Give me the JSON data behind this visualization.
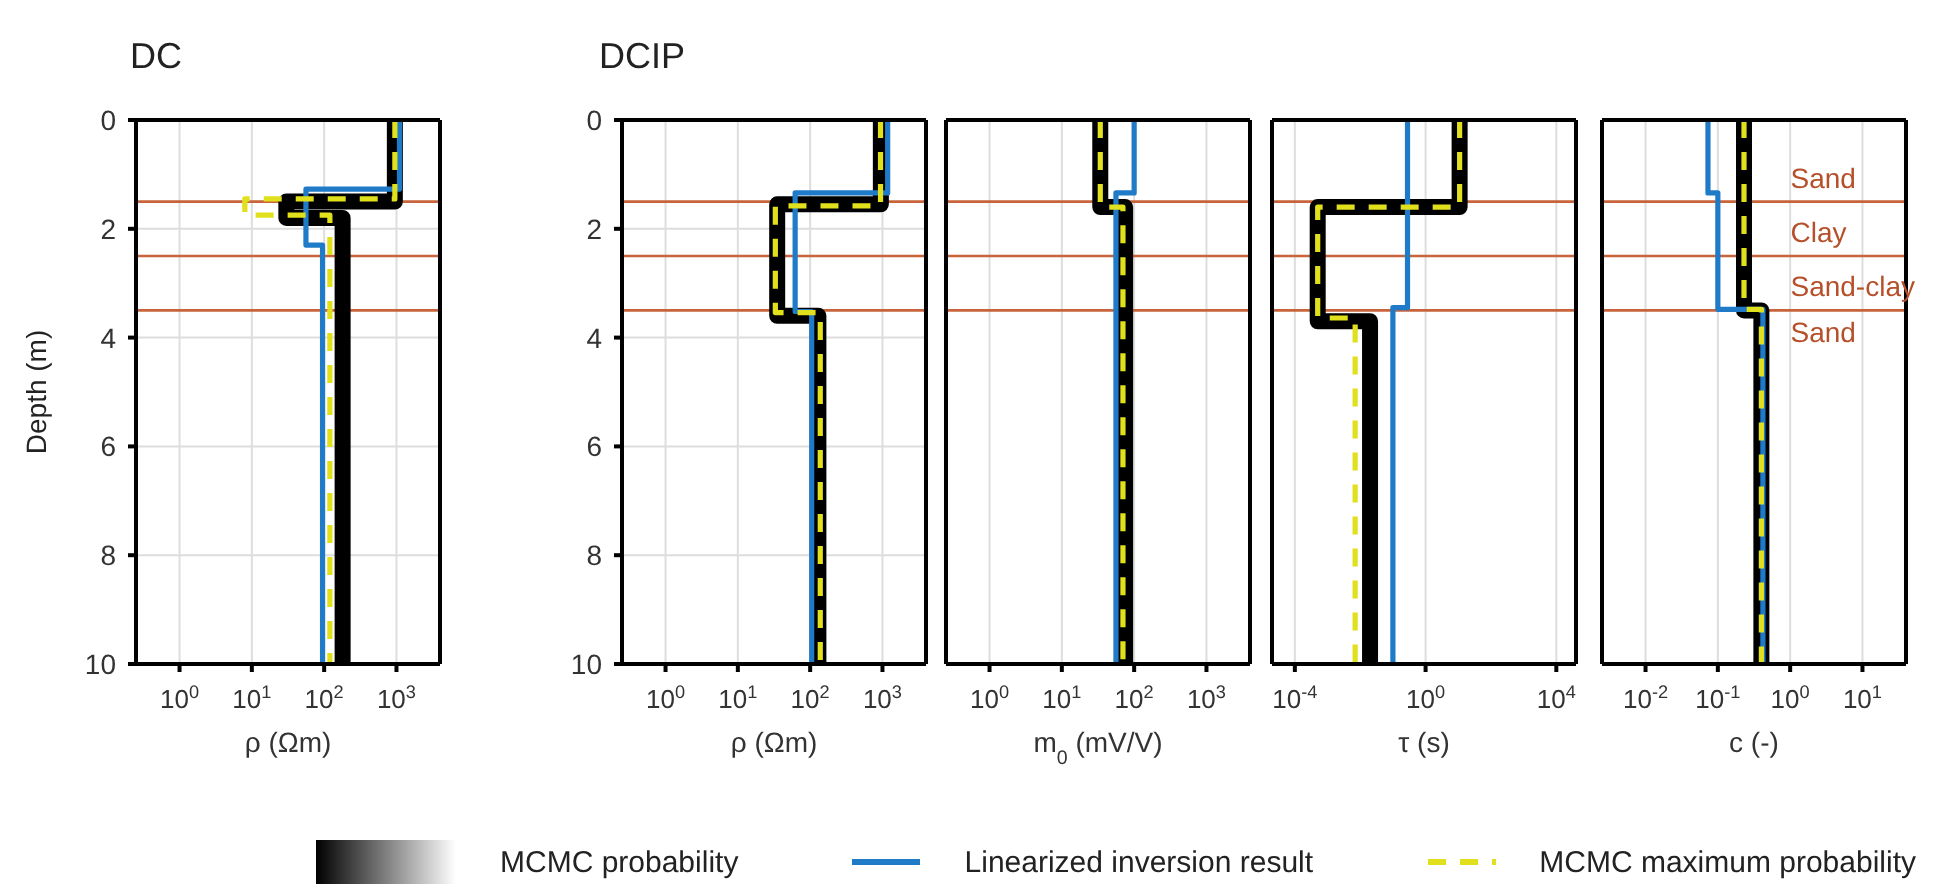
{
  "chart_data": [
    {
      "type": "line",
      "title": "DC",
      "xlabel": "ρ (Ωm)",
      "ylabel": "Depth (m)",
      "log": "x",
      "grid": true,
      "legend": "bottom",
      "xlim": [
        0.25,
        4000
      ],
      "xticks": [
        {
          "value": 1,
          "label": "10$^{0}$"
        },
        {
          "value": 10,
          "label": "10$^{1}$"
        },
        {
          "value": 100,
          "label": "10$^{2}$"
        },
        {
          "value": 1000,
          "label": "10$^{3}$"
        }
      ],
      "ylim": [
        10,
        0
      ],
      "yticks": [
        0,
        2,
        4,
        6,
        8,
        10
      ],
      "ref_lines": [
        {
          "axis": "y",
          "value": 1.5,
          "color": "#c8643c"
        },
        {
          "axis": "y",
          "value": 2.5,
          "color": "#c8643c"
        },
        {
          "axis": "y",
          "value": 3.5,
          "color": "#c8643c"
        }
      ],
      "series": [
        {
          "name": "MCMC probability",
          "color": "#000000",
          "x": [
            950,
            950,
            30,
            30,
            180,
            180
          ],
          "values": [
            0,
            1.5,
            1.5,
            1.8,
            1.8,
            10
          ]
        },
        {
          "name": "Linearized inversion result",
          "color": "#1f7bc8",
          "x": [
            1100,
            1100,
            56,
            56,
            95,
            95
          ],
          "values": [
            0,
            1.27,
            1.27,
            2.3,
            2.3,
            10
          ]
        },
        {
          "name": "MCMC maximum probability",
          "color": "#e1e01c",
          "line_style": "dashed",
          "x": [
            950,
            950,
            8,
            8,
            120,
            120
          ],
          "values": [
            0,
            1.45,
            1.45,
            1.75,
            1.75,
            10
          ]
        }
      ]
    },
    {
      "type": "line",
      "title": "DCIP",
      "xlabel": "ρ (Ωm)",
      "log": "x",
      "grid": true,
      "xlim": [
        0.25,
        4000
      ],
      "xticks": [
        {
          "value": 1,
          "label": "10$^{0}$"
        },
        {
          "value": 10,
          "label": "10$^{1}$"
        },
        {
          "value": 100,
          "label": "10$^{2}$"
        },
        {
          "value": 1000,
          "label": "10$^{3}$"
        }
      ],
      "ylim": [
        10,
        0
      ],
      "yticks": [
        0,
        2,
        4,
        6,
        8,
        10
      ],
      "ref_lines": [
        {
          "axis": "y",
          "value": 1.5,
          "color": "#c8643c"
        },
        {
          "axis": "y",
          "value": 2.5,
          "color": "#c8643c"
        },
        {
          "axis": "y",
          "value": 3.5,
          "color": "#c8643c"
        }
      ],
      "series": [
        {
          "color": "#000000",
          "x": [
            950,
            950,
            35,
            35,
            130,
            130
          ],
          "values": [
            0,
            1.55,
            1.55,
            3.6,
            3.6,
            10
          ]
        },
        {
          "color": "#1f7bc8",
          "x": [
            1180,
            1180,
            62,
            62,
            105,
            105
          ],
          "values": [
            0,
            1.34,
            1.34,
            3.52,
            3.52,
            10
          ]
        },
        {
          "color": "#e1e01c",
          "line_style": "dashed",
          "x": [
            940,
            940,
            33,
            33,
            138,
            138
          ],
          "values": [
            0,
            1.58,
            1.58,
            3.54,
            3.54,
            10
          ]
        }
      ]
    },
    {
      "type": "line",
      "xlabel": "m$_{0}$ (mV/V)",
      "log": "x",
      "grid": true,
      "tick_labels": "x",
      "xlim": [
        0.25,
        4000
      ],
      "xticks": [
        {
          "value": 1,
          "label": "10$^{0}$"
        },
        {
          "value": 10,
          "label": "10$^{1}$"
        },
        {
          "value": 100,
          "label": "10$^{2}$"
        },
        {
          "value": 1000,
          "label": "10$^{3}$"
        }
      ],
      "ylim": [
        10,
        0
      ],
      "yticks": [
        0,
        2,
        4,
        6,
        8,
        10
      ],
      "ref_lines": [
        {
          "axis": "y",
          "value": 1.5,
          "color": "#c8643c"
        },
        {
          "axis": "y",
          "value": 2.5,
          "color": "#c8643c"
        },
        {
          "axis": "y",
          "value": 3.5,
          "color": "#c8643c"
        }
      ],
      "series": [
        {
          "color": "#000000",
          "x": [
            34,
            34,
            75,
            75
          ],
          "values": [
            0,
            1.6,
            1.6,
            10
          ]
        },
        {
          "color": "#1f7bc8",
          "x": [
            100,
            100,
            56,
            56
          ],
          "values": [
            0,
            1.34,
            1.34,
            10
          ]
        },
        {
          "color": "#e1e01c",
          "line_style": "dashed",
          "x": [
            34,
            34,
            70,
            70
          ],
          "values": [
            0,
            1.6,
            1.6,
            10
          ]
        }
      ]
    },
    {
      "type": "line",
      "xlabel": "τ (s)",
      "log": "x",
      "grid": true,
      "tick_labels": "x",
      "xlim": [
        2e-05,
        40000
      ],
      "xticks": [
        {
          "value": 0.0001,
          "label": "10$^{-4}$"
        },
        {
          "value": 1,
          "label": "10$^{0}$"
        },
        {
          "value": 10000,
          "label": "10$^{4}$"
        }
      ],
      "ylim": [
        10,
        0
      ],
      "yticks": [
        0,
        2,
        4,
        6,
        8,
        10
      ],
      "ref_lines": [
        {
          "axis": "y",
          "value": 1.5,
          "color": "#c8643c"
        },
        {
          "axis": "y",
          "value": 2.5,
          "color": "#c8643c"
        },
        {
          "axis": "y",
          "value": 3.5,
          "color": "#c8643c"
        }
      ],
      "series": [
        {
          "color": "#000000",
          "x": [
            11,
            11,
            0.0005,
            0.0005,
            0.02,
            0.02
          ],
          "values": [
            0,
            1.6,
            1.6,
            3.7,
            3.7,
            10
          ]
        },
        {
          "color": "#1f7bc8",
          "x": [
            0.28,
            0.28,
            0.1,
            0.1
          ],
          "values": [
            0,
            3.45,
            3.45,
            10
          ]
        },
        {
          "color": "#e1e01c",
          "line_style": "dashed",
          "x": [
            11,
            11,
            0.0005,
            0.0005,
            0.007,
            0.007
          ],
          "values": [
            0,
            1.6,
            1.6,
            3.64,
            3.64,
            10
          ]
        }
      ]
    },
    {
      "type": "line",
      "xlabel": "c (-)",
      "log": "x",
      "grid": true,
      "tick_labels": "x",
      "xlim": [
        0.0025,
        40
      ],
      "xticks": [
        {
          "value": 0.01,
          "label": "10$^{-2}$"
        },
        {
          "value": 0.1,
          "label": "10$^{-1}$"
        },
        {
          "value": 1,
          "label": "10$^{0}$"
        },
        {
          "value": 10,
          "label": "10$^{1}$"
        }
      ],
      "ylim": [
        10,
        0
      ],
      "yticks": [
        0,
        2,
        4,
        6,
        8,
        10
      ],
      "ref_lines": [
        {
          "axis": "y",
          "value": 1.5,
          "color": "#c8643c"
        },
        {
          "axis": "y",
          "value": 2.5,
          "color": "#c8643c"
        },
        {
          "axis": "y",
          "value": 3.5,
          "color": "#c8643c"
        }
      ],
      "annotations": [
        "Sand",
        "Clay",
        "Sand-clay",
        "Sand"
      ],
      "series": [
        {
          "color": "#000000",
          "x": [
            0.23,
            0.23,
            0.4,
            0.4
          ],
          "values": [
            0,
            3.5,
            3.5,
            10
          ]
        },
        {
          "color": "#1f7bc8",
          "x": [
            0.073,
            0.073,
            0.1,
            0.1,
            0.42,
            0.42
          ],
          "values": [
            0,
            1.34,
            1.34,
            3.48,
            3.48,
            10
          ]
        },
        {
          "color": "#e1e01c",
          "line_style": "dashed",
          "x": [
            0.23,
            0.23,
            0.4,
            0.4
          ],
          "values": [
            0,
            3.48,
            3.48,
            10
          ]
        }
      ]
    }
  ]
}
